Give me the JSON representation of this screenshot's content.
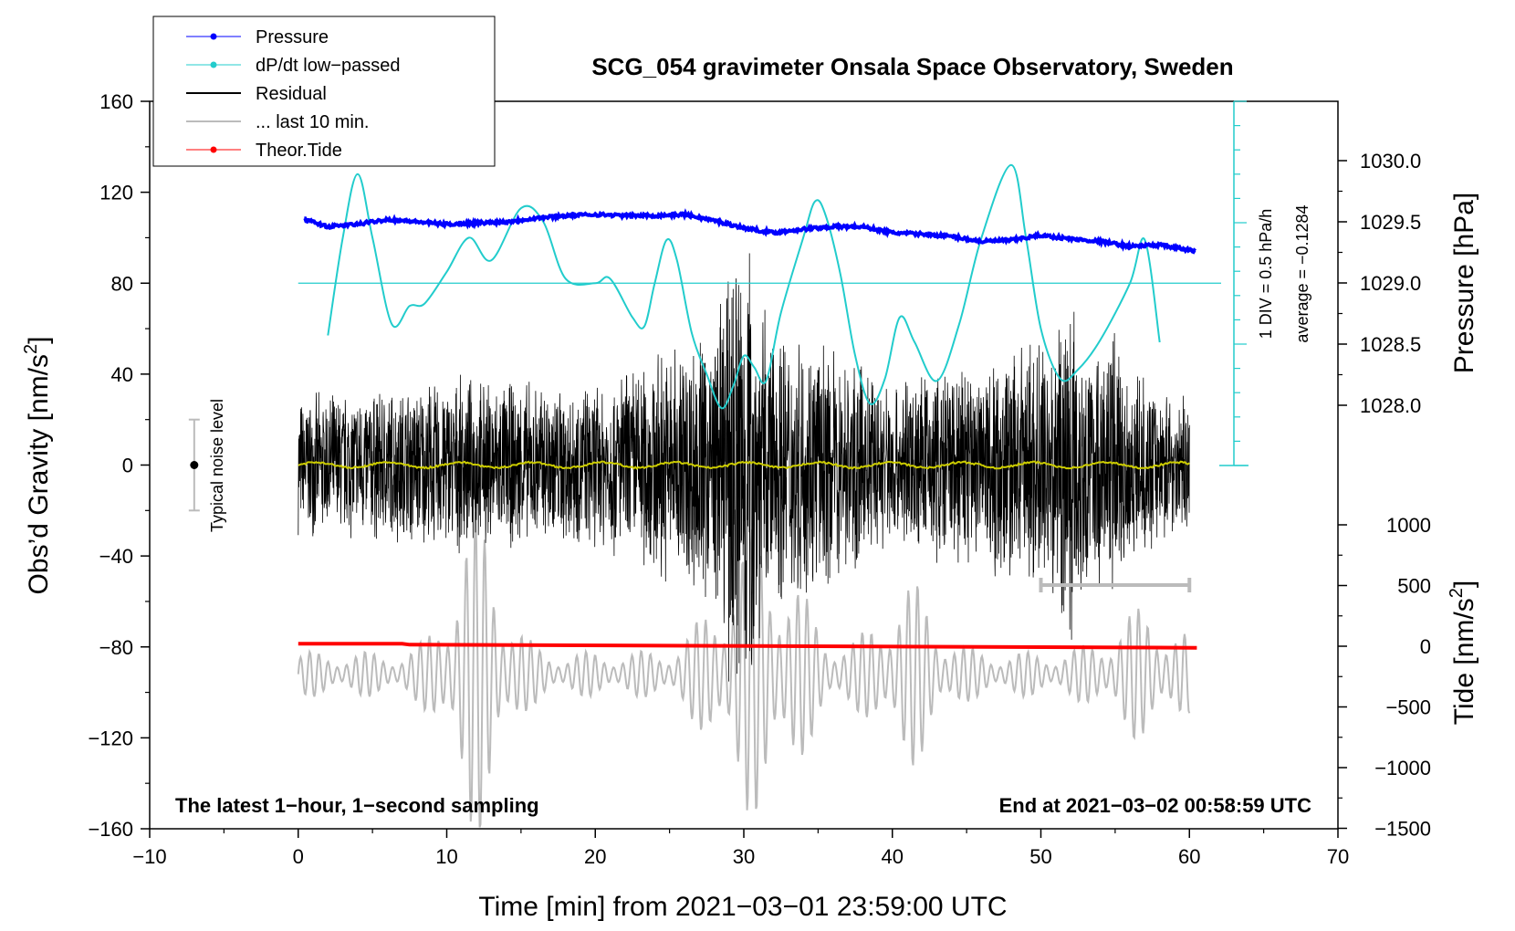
{
  "chart_data": {
    "type": "line",
    "title": "SCG_054 gravimeter Onsala Space Observatory, Sweden",
    "xlabel": "Time [min] from 2021−03−01 23:59:00 UTC",
    "ylabel_left": "Obs’d Gravity [nm/s",
    "ylabel_left_sup": "2",
    "ylabel_left_end": "]",
    "ylabel_right_top": "Pressure [hPa]",
    "ylabel_right_bottom": "Tide [nm/s",
    "ylabel_right_bottom_sup": "2",
    "ylabel_right_bottom_end": "]",
    "xlim": [
      -10,
      70
    ],
    "ylim": [
      -160,
      160
    ],
    "pressure_axis_range": [
      1027.84,
      1030.0
    ],
    "tide_axis_range": [
      -1500,
      1000
    ],
    "x_ticks": [
      -10,
      0,
      10,
      20,
      30,
      40,
      50,
      60,
      70
    ],
    "x_tick_labels": [
      "−10",
      "0",
      "10",
      "20",
      "30",
      "40",
      "50",
      "60",
      "70"
    ],
    "y_ticks": [
      160,
      120,
      80,
      40,
      0,
      -40,
      -80,
      -120,
      -160
    ],
    "y_tick_labels": [
      "160",
      "120",
      "80",
      "40",
      "0",
      "−40",
      "−80",
      "−120",
      "−160"
    ],
    "pressure_ticks": [
      1030.0,
      1029.5,
      1029.0,
      1028.5,
      1028.0
    ],
    "pressure_tick_labels": [
      "1030.0",
      "1029.5",
      "1029.0",
      "1028.5",
      "1028.0"
    ],
    "tide_ticks": [
      1000,
      500,
      0,
      -500,
      -1000,
      -1500
    ],
    "tide_tick_labels": [
      "1000",
      "500",
      "0",
      "−500",
      "−1000",
      "−1500"
    ],
    "legend": [
      {
        "label": "Pressure",
        "color": "#0000ff",
        "marker": true,
        "line_width": 1
      },
      {
        "label": "dP/dt low−passed",
        "color": "#22cccc",
        "marker": true,
        "line_width": 1
      },
      {
        "label": "Residual",
        "color": "#000000",
        "marker": false,
        "line_width": 2
      },
      {
        "label": "... last 10 min.",
        "color": "#bbbbbb",
        "marker": false,
        "line_width": 2
      },
      {
        "label": "Theor.Tide",
        "color": "#ff0000",
        "marker": true,
        "line_width": 1
      }
    ],
    "series": [
      {
        "name": "Pressure",
        "color": "#0000ff",
        "x": [
          0.4,
          2,
          4,
          6,
          8,
          10,
          12,
          14,
          16,
          18,
          20,
          22,
          24,
          26,
          28,
          30,
          32,
          34,
          36,
          38,
          40,
          42,
          44,
          46,
          48,
          50,
          52,
          54,
          56,
          58,
          60.4
        ],
        "values": [
          1029.52,
          1029.46,
          1029.48,
          1029.52,
          1029.5,
          1029.48,
          1029.49,
          1029.5,
          1029.53,
          1029.55,
          1029.56,
          1029.55,
          1029.55,
          1029.56,
          1029.51,
          1029.45,
          1029.41,
          1029.44,
          1029.46,
          1029.46,
          1029.41,
          1029.4,
          1029.38,
          1029.34,
          1029.35,
          1029.39,
          1029.36,
          1029.34,
          1029.3,
          1029.31,
          1029.26
        ]
      },
      {
        "name": "dP/dt low−passed",
        "color": "#22cccc",
        "baseline": 80,
        "x": [
          2,
          3,
          4,
          5,
          6.3,
          7.5,
          8.5,
          10,
          11.5,
          13,
          15,
          16.5,
          18,
          20,
          21,
          22.5,
          23.3,
          24,
          24.8,
          25.5,
          26.5,
          27.5,
          28.5,
          29.3,
          30,
          30.7,
          31.5,
          32.5,
          34,
          34.8,
          35.5,
          36.5,
          37.5,
          38.5,
          39.5,
          40.5,
          41.5,
          43,
          44.5,
          46,
          48,
          49,
          50,
          51.3,
          52.5,
          54,
          56,
          57,
          58
        ],
        "values": [
          57,
          100,
          128,
          100,
          62,
          70,
          71,
          85,
          100,
          90,
          113,
          107,
          82,
          80,
          82,
          65,
          61,
          80,
          99,
          90,
          58,
          40,
          25,
          35,
          48,
          43,
          37,
          67,
          100,
          116,
          110,
          84,
          48,
          27,
          38,
          65,
          54,
          37,
          62,
          100,
          132,
          100,
          60,
          38,
          42,
          55,
          80,
          99,
          54
        ]
      },
      {
        "name": "Residual",
        "color": "#000000",
        "note": "~±30 nm/s² high-frequency noise, peaks up to ±75 near 30 min and 50–57 min",
        "x": [
          0,
          10,
          20,
          30,
          40,
          50,
          60
        ],
        "values": [
          0,
          0,
          0,
          0,
          0,
          0,
          0
        ],
        "envelope_amplitude": [
          32,
          40,
          38,
          75,
          40,
          60,
          30
        ]
      },
      {
        "name": "Residual (smoothed)",
        "color": "#cccc00",
        "x": [
          0,
          60
        ],
        "values": [
          0,
          0
        ]
      },
      {
        "name": "... last 10 min.",
        "color": "#bbbbbb",
        "note": "last 10 min. residual drawn on tide scale, oscillating around −90 nm/s² with bursts near 10–14 and 28–36 min",
        "x": [
          0,
          60
        ],
        "center": -92
      },
      {
        "name": "Theor.Tide",
        "color": "#ff0000",
        "x": [
          0,
          7,
          7.5,
          60.5
        ],
        "values": [
          -78.6,
          -78.6,
          -79.0,
          -80.4
        ]
      }
    ],
    "annotations": {
      "dpdt_scale": "1 DIV = 0.5 hPa/h",
      "dpdt_average": "average = −0.1284",
      "noise_label": "Typical noise level",
      "footer_left": "The latest 1−hour, 1−second sampling",
      "footer_right": "End at 2021−03−02 00:58:59 UTC"
    }
  }
}
